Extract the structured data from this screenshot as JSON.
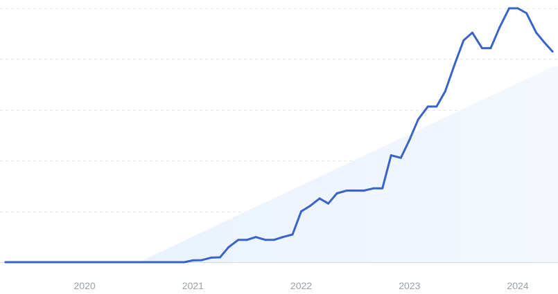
{
  "chart_data": {
    "type": "line",
    "title": "",
    "xlabel": "",
    "ylabel": "",
    "grid": "horizontal dashed",
    "legend": "none",
    "xlim": [
      2019.27,
      2024.32
    ],
    "ylim": [
      0,
      100
    ],
    "x_ticks": [
      {
        "value": 2020,
        "label": "2020"
      },
      {
        "value": 2021,
        "label": "2021"
      },
      {
        "value": 2022,
        "label": "2022"
      },
      {
        "value": 2023,
        "label": "2023"
      },
      {
        "value": 2024,
        "label": "2024"
      }
    ],
    "y_gridlines": [
      0,
      20,
      40,
      60,
      80,
      100
    ],
    "trend_area": {
      "start": [
        2020.5,
        0
      ],
      "end": [
        2024.32,
        77
      ]
    },
    "series": [
      {
        "color": "#3a63c7",
        "points": [
          [
            2019.27,
            0
          ],
          [
            2020.17,
            0
          ],
          [
            2020.92,
            0
          ],
          [
            2021.0,
            0.7
          ],
          [
            2021.08,
            0.8
          ],
          [
            2021.17,
            1.8
          ],
          [
            2021.25,
            1.9
          ],
          [
            2021.33,
            5.9
          ],
          [
            2021.42,
            8.8
          ],
          [
            2021.5,
            8.8
          ],
          [
            2021.58,
            9.9
          ],
          [
            2021.67,
            8.8
          ],
          [
            2021.75,
            8.8
          ],
          [
            2021.83,
            9.9
          ],
          [
            2021.92,
            10.9
          ],
          [
            2022.0,
            20.0
          ],
          [
            2022.08,
            22.1
          ],
          [
            2022.17,
            25.1
          ],
          [
            2022.25,
            23.1
          ],
          [
            2022.33,
            27.1
          ],
          [
            2022.42,
            28.2
          ],
          [
            2022.5,
            28.2
          ],
          [
            2022.58,
            28.2
          ],
          [
            2022.67,
            29.1
          ],
          [
            2022.75,
            29.1
          ],
          [
            2022.83,
            42.1
          ],
          [
            2022.92,
            41.1
          ],
          [
            2023.0,
            48.2
          ],
          [
            2023.08,
            56.2
          ],
          [
            2023.17,
            61.3
          ],
          [
            2023.25,
            61.3
          ],
          [
            2023.33,
            67.3
          ],
          [
            2023.42,
            78.3
          ],
          [
            2023.5,
            87.4
          ],
          [
            2023.58,
            90.4
          ],
          [
            2023.67,
            84.3
          ],
          [
            2023.75,
            84.3
          ],
          [
            2023.83,
            92.3
          ],
          [
            2023.92,
            100.0
          ],
          [
            2024.0,
            100.0
          ],
          [
            2024.08,
            98.1
          ],
          [
            2024.17,
            90.4
          ],
          [
            2024.25,
            86.3
          ],
          [
            2024.32,
            83.0
          ]
        ]
      }
    ]
  }
}
